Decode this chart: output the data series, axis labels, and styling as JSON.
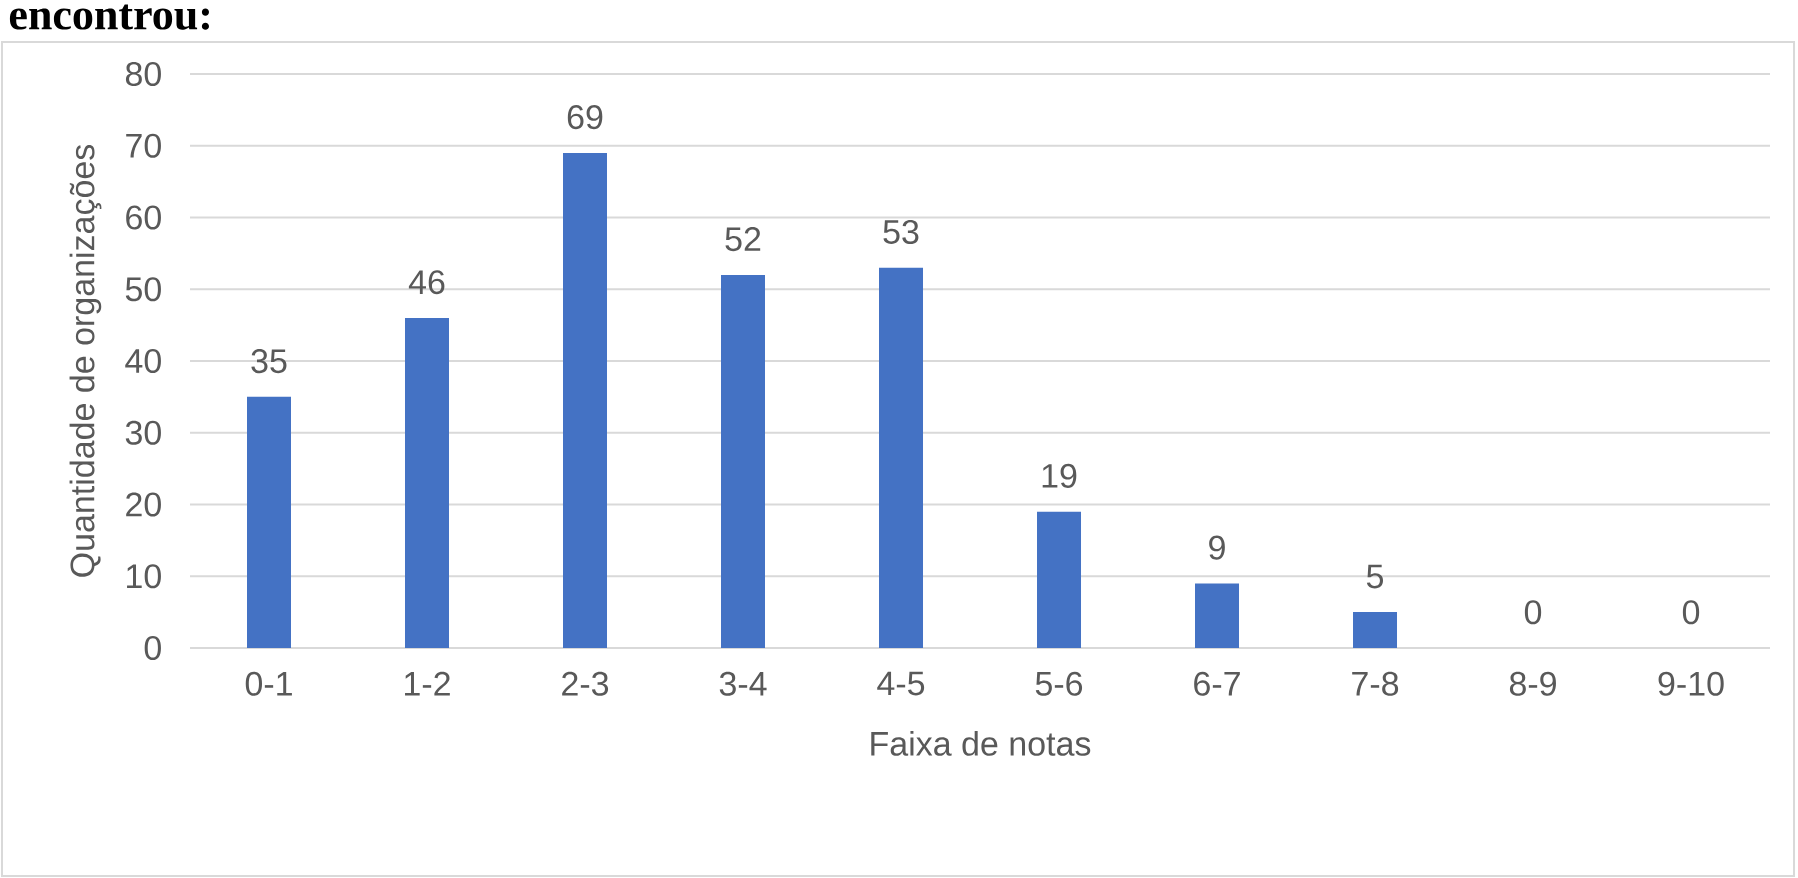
{
  "chart_data": {
    "type": "bar",
    "title": "encontrou:",
    "xlabel": "Faixa de notas",
    "ylabel": "Quantidade de organizações",
    "categories": [
      "0-1",
      "1-2",
      "2-3",
      "3-4",
      "4-5",
      "5-6",
      "6-7",
      "7-8",
      "8-9",
      "9-10"
    ],
    "values": [
      35,
      46,
      69,
      52,
      53,
      19,
      9,
      5,
      0,
      0
    ],
    "color": "#4472c4",
    "ylim": [
      0,
      80
    ],
    "yticks": [
      0,
      10,
      20,
      30,
      40,
      50,
      60,
      70,
      80
    ],
    "grid": "y",
    "data_labels": true
  }
}
